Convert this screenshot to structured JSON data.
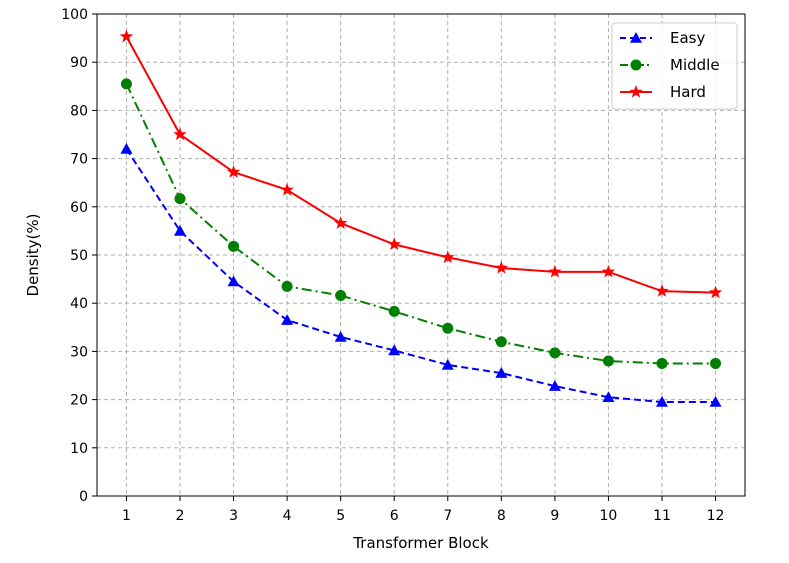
{
  "chart_data": {
    "type": "line",
    "title": "",
    "xlabel": "Transformer Block",
    "ylabel": "Density(%)",
    "x": [
      1,
      2,
      3,
      4,
      5,
      6,
      7,
      8,
      9,
      10,
      11,
      12
    ],
    "xlim": [
      0.45,
      12.55
    ],
    "ylim": [
      0,
      100
    ],
    "yticks": [
      0,
      10,
      20,
      30,
      40,
      50,
      60,
      70,
      80,
      90,
      100
    ],
    "grid": true,
    "legend_position": "top-right",
    "series": [
      {
        "name": "Easy",
        "color": "#0000ff",
        "marker": "triangle",
        "linestyle": "dashed",
        "values": [
          72,
          55,
          44.5,
          36.5,
          33,
          30.2,
          27.2,
          25.5,
          22.8,
          20.5,
          19.5,
          19.5
        ]
      },
      {
        "name": "Middle",
        "color": "#008000",
        "marker": "circle",
        "linestyle": "dashdot",
        "values": [
          85.5,
          61.7,
          51.8,
          43.5,
          41.6,
          38.3,
          34.8,
          32,
          29.7,
          28,
          27.5,
          27.5
        ]
      },
      {
        "name": "Hard",
        "color": "#ff0000",
        "marker": "star",
        "linestyle": "solid",
        "values": [
          95.3,
          75,
          67.2,
          63.5,
          56.6,
          52.2,
          49.5,
          47.3,
          46.5,
          46.5,
          42.5,
          42.2
        ]
      }
    ]
  }
}
